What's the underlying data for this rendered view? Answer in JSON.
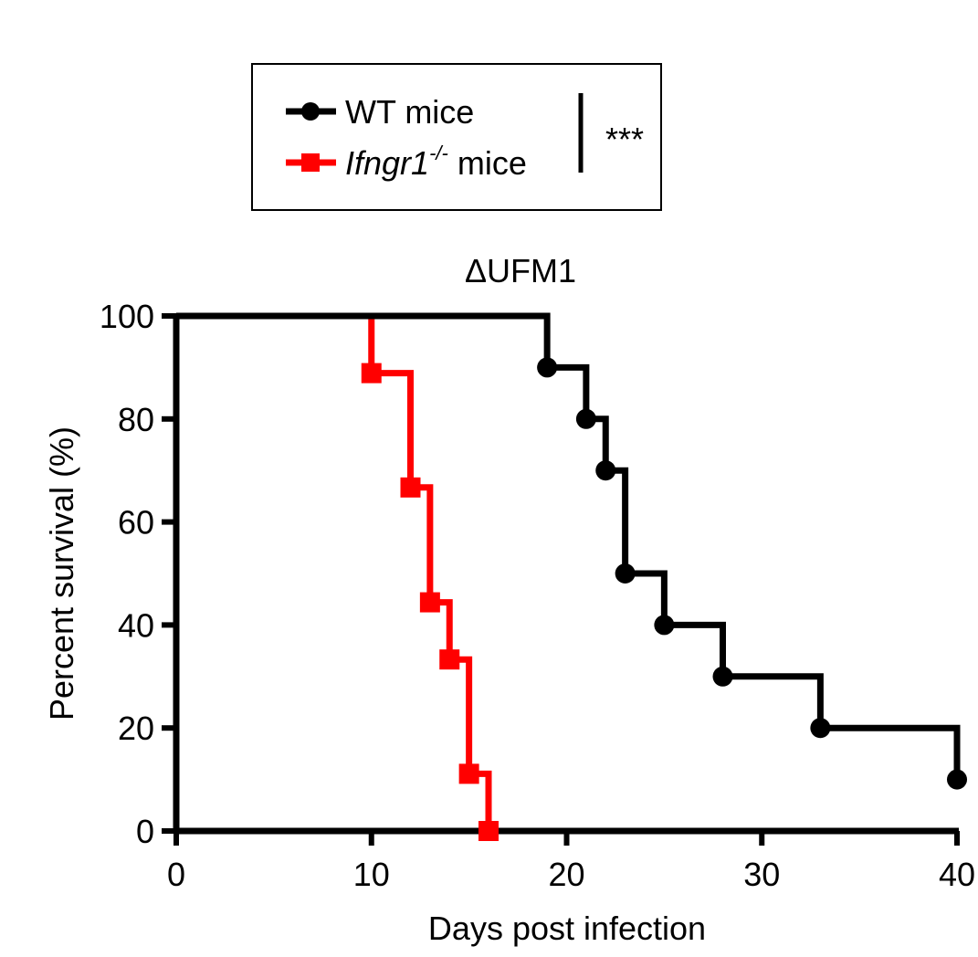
{
  "chart_data": {
    "type": "line",
    "subtype": "kaplan-meier-survival",
    "title": "ΔUFM1",
    "xlabel": "Days post infection",
    "ylabel": "Percent survival (%)",
    "xlim": [
      0,
      40
    ],
    "ylim": [
      0,
      100
    ],
    "xticks": [
      "0",
      "10",
      "20",
      "30",
      "40"
    ],
    "yticks": [
      "0",
      "20",
      "40",
      "60",
      "80",
      "100"
    ],
    "grid": false,
    "legend_position": "top-left",
    "significance": "***",
    "series": [
      {
        "name": "WT mice",
        "legend_parts": [
          "WT mice"
        ],
        "color": "#000000",
        "marker": "circle",
        "steps": [
          [
            0,
            100
          ],
          [
            19,
            90
          ],
          [
            21,
            80
          ],
          [
            22,
            70
          ],
          [
            23,
            50
          ],
          [
            25,
            40
          ],
          [
            28,
            30
          ],
          [
            33,
            20
          ],
          [
            40,
            10
          ]
        ],
        "markers": [
          [
            19,
            90
          ],
          [
            21,
            80
          ],
          [
            22,
            70
          ],
          [
            23,
            50
          ],
          [
            25,
            40
          ],
          [
            28,
            30
          ],
          [
            33,
            20
          ],
          [
            40,
            10
          ]
        ]
      },
      {
        "name": "Ifngr1-/- mice",
        "legend_parts": [
          "Ifngr1",
          "-/-",
          " mice"
        ],
        "color": "#ff0000",
        "marker": "square",
        "steps": [
          [
            0,
            100
          ],
          [
            10,
            88.9
          ],
          [
            12,
            66.7
          ],
          [
            13,
            44.4
          ],
          [
            14,
            33.3
          ],
          [
            15,
            11.1
          ],
          [
            16,
            0
          ]
        ],
        "markers": [
          [
            10,
            88.9
          ],
          [
            12,
            66.7
          ],
          [
            13,
            44.4
          ],
          [
            14,
            33.3
          ],
          [
            15,
            11.1
          ],
          [
            16,
            0
          ]
        ]
      }
    ]
  }
}
